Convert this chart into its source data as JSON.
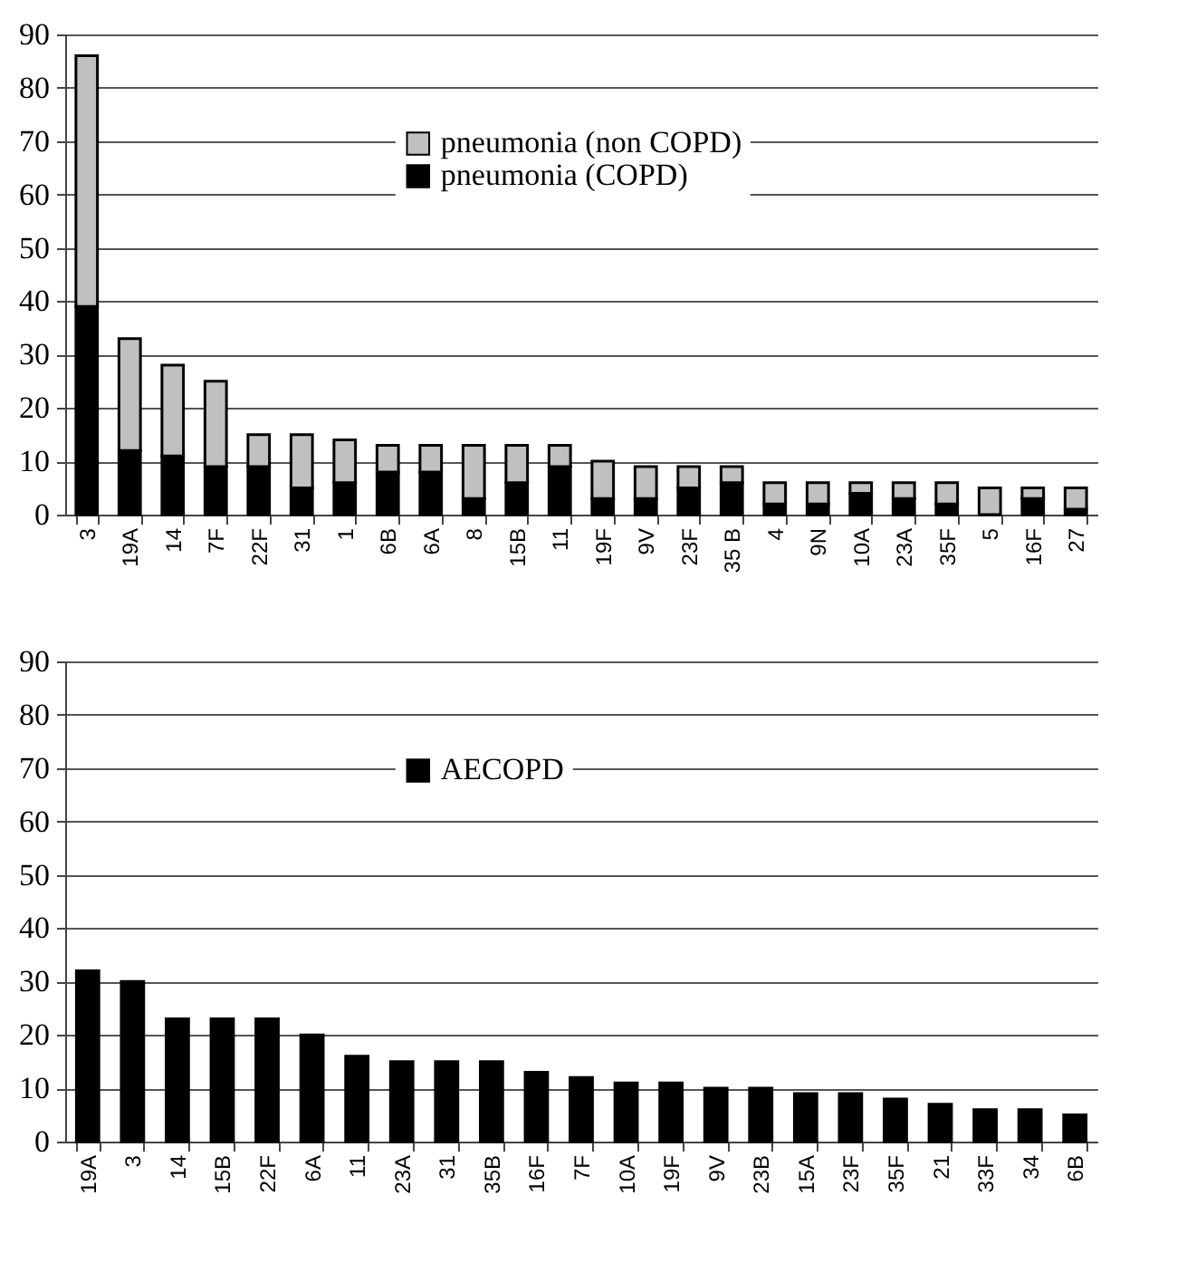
{
  "chart_data": [
    {
      "type": "bar",
      "stacked": true,
      "categories": [
        "3",
        "19A",
        "14",
        "7F",
        "22F",
        "31",
        "1",
        "6B",
        "6A",
        "8",
        "15B",
        "11",
        "19F",
        "9V",
        "23F",
        "35 B",
        "4",
        "9N",
        "10A",
        "23A",
        "35F",
        "5",
        "16F",
        "27"
      ],
      "series": [
        {
          "name": "pneumonia (COPD)",
          "color": "#000000",
          "values": [
            39,
            12,
            11,
            9,
            9,
            5,
            6,
            8,
            8,
            3,
            6,
            9,
            3,
            3,
            5,
            6,
            2,
            2,
            4,
            3,
            2,
            0,
            3,
            1
          ]
        },
        {
          "name": "pneumonia (non COPD)",
          "color": "#c0c0c0",
          "values": [
            47,
            21,
            17,
            16,
            6,
            10,
            8,
            5,
            5,
            10,
            7,
            4,
            7,
            6,
            4,
            3,
            4,
            4,
            2,
            3,
            4,
            5,
            2,
            4
          ]
        }
      ],
      "ylim": [
        0,
        90
      ],
      "yticks": [
        0,
        10,
        20,
        30,
        40,
        50,
        60,
        70,
        80,
        90
      ],
      "grid": "y",
      "legend": "top"
    },
    {
      "type": "bar",
      "categories": [
        "19A",
        "3",
        "14",
        "15B",
        "22F",
        "6A",
        "11",
        "23A",
        "31",
        "35B",
        "16F",
        "7F",
        "10A",
        "19F",
        "9V",
        "23B",
        "15A",
        "23F",
        "35F",
        "21",
        "33F",
        "34",
        "6B"
      ],
      "series": [
        {
          "name": "AECOPD",
          "color": "#000000",
          "values": [
            32,
            30,
            23,
            23,
            23,
            20,
            16,
            15,
            15,
            15,
            13,
            12,
            11,
            11,
            10,
            10,
            9,
            9,
            8,
            7,
            6,
            6,
            5
          ]
        }
      ],
      "ylim": [
        0,
        90
      ],
      "yticks": [
        0,
        10,
        20,
        30,
        40,
        50,
        60,
        70,
        80,
        90
      ],
      "grid": "y",
      "legend": "top"
    }
  ]
}
